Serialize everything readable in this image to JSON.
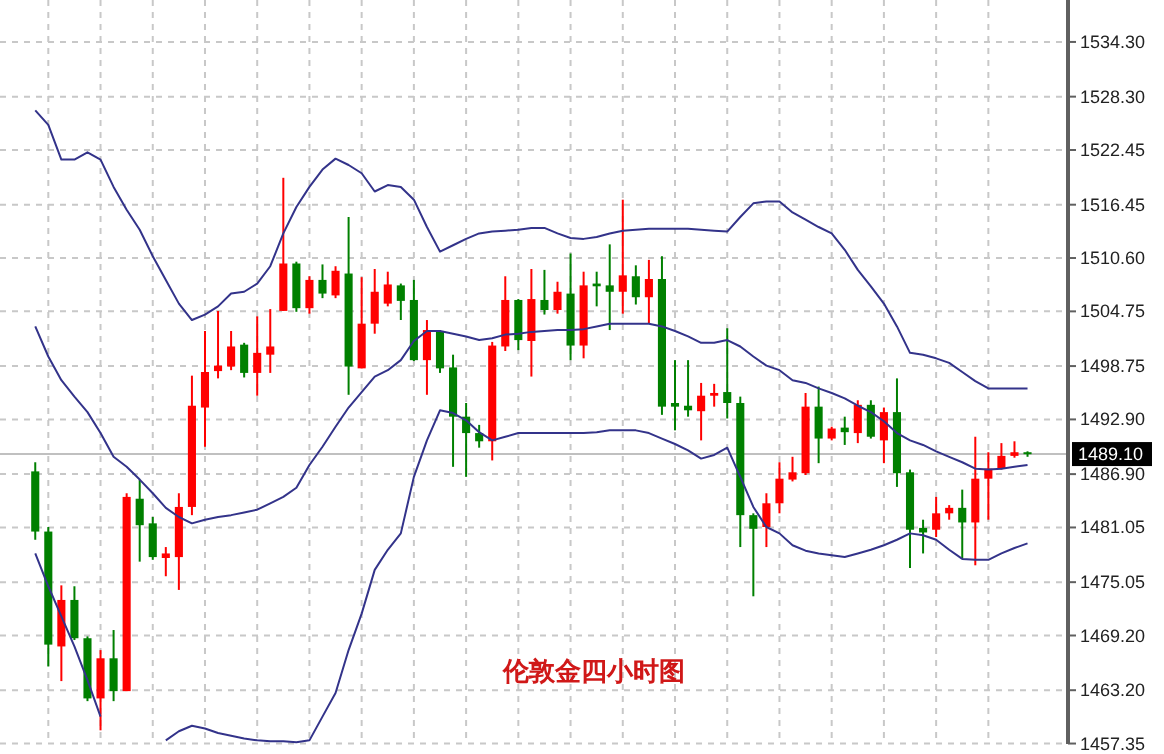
{
  "chart_data": {
    "type": "candlestick",
    "categories": [
      null,
      null,
      null,
      null,
      null,
      null,
      null,
      null,
      null,
      null,
      null,
      null,
      null,
      null,
      null,
      null,
      null,
      null,
      null,
      null,
      null,
      null,
      null,
      null,
      null,
      null,
      null,
      null,
      null,
      null,
      null,
      null,
      null,
      null,
      null,
      null,
      null,
      null,
      null,
      null,
      null,
      null,
      null,
      null,
      null,
      null,
      null,
      null,
      null,
      null,
      null,
      null,
      null,
      null,
      null,
      null,
      null,
      null,
      null,
      null,
      null,
      null,
      null,
      null,
      null,
      null,
      null,
      null,
      null,
      null,
      null,
      null,
      null,
      null,
      null,
      null,
      null
    ],
    "ohlc": [
      [
        1487.2,
        1488.2,
        1479.7,
        1480.6
      ],
      [
        1480.6,
        1481.1,
        1465.8,
        1468.2
      ],
      [
        1468.0,
        1474.7,
        1464.2,
        1473.1
      ],
      [
        1473.1,
        1474.6,
        1468.7,
        1468.9
      ],
      [
        1468.9,
        1469.1,
        1462.0,
        1462.3
      ],
      [
        1462.3,
        1467.6,
        1458.8,
        1466.7
      ],
      [
        1466.7,
        1469.8,
        1462.0,
        1463.1
      ],
      [
        1463.1,
        1484.8,
        1463.1,
        1484.4
      ],
      [
        1484.2,
        1486.3,
        1477.3,
        1481.3
      ],
      [
        1481.5,
        1482.2,
        1477.5,
        1477.8
      ],
      [
        1477.7,
        1478.9,
        1475.7,
        1478.2
      ],
      [
        1477.8,
        1484.8,
        1474.2,
        1483.3
      ],
      [
        1483.3,
        1497.7,
        1482.4,
        1494.4
      ],
      [
        1494.2,
        1502.6,
        1489.9,
        1498.1
      ],
      [
        1498.2,
        1504.8,
        1497.4,
        1498.8
      ],
      [
        1498.7,
        1502.6,
        1498.3,
        1500.9
      ],
      [
        1501.1,
        1501.3,
        1497.5,
        1498.0
      ],
      [
        1498.0,
        1504.2,
        1495.5,
        1500.2
      ],
      [
        1500.0,
        1505.0,
        1498.0,
        1500.9
      ],
      [
        1504.8,
        1519.4,
        1504.8,
        1510.0
      ],
      [
        1510.0,
        1510.2,
        1504.7,
        1505.1
      ],
      [
        1505.1,
        1508.6,
        1504.5,
        1508.2
      ],
      [
        1508.2,
        1509.9,
        1506.2,
        1506.7
      ],
      [
        1506.5,
        1509.7,
        1506.2,
        1509.2
      ],
      [
        1508.9,
        1515.1,
        1495.6,
        1498.7
      ],
      [
        1498.5,
        1508.5,
        1498.5,
        1503.4
      ],
      [
        1503.4,
        1509.4,
        1502.3,
        1506.9
      ],
      [
        1505.6,
        1509.1,
        1505.3,
        1507.7
      ],
      [
        1507.6,
        1507.8,
        1503.8,
        1505.9
      ],
      [
        1506.0,
        1508.2,
        1499.3,
        1499.4
      ],
      [
        1499.4,
        1503.8,
        1495.6,
        1502.7
      ],
      [
        1502.6,
        1502.7,
        1498.0,
        1498.5
      ],
      [
        1498.6,
        1500.0,
        1487.7,
        1493.2
      ],
      [
        1493.2,
        1494.7,
        1486.6,
        1491.4
      ],
      [
        1491.4,
        1492.3,
        1489.8,
        1490.5
      ],
      [
        1490.5,
        1501.4,
        1488.4,
        1501.0
      ],
      [
        1500.9,
        1508.6,
        1500.4,
        1506.0
      ],
      [
        1506.0,
        1506.1,
        1500.5,
        1501.6
      ],
      [
        1501.5,
        1509.4,
        1497.6,
        1506.1
      ],
      [
        1506.0,
        1509.3,
        1504.4,
        1504.9
      ],
      [
        1504.9,
        1508.0,
        1504.5,
        1506.9
      ],
      [
        1506.7,
        1511.1,
        1499.4,
        1501.0
      ],
      [
        1501.0,
        1509.1,
        1499.6,
        1507.6
      ],
      [
        1507.8,
        1509.1,
        1505.3,
        1507.5
      ],
      [
        1507.6,
        1512.1,
        1502.7,
        1506.9
      ],
      [
        1506.9,
        1517.0,
        1504.5,
        1508.7
      ],
      [
        1508.6,
        1509.8,
        1505.5,
        1506.3
      ],
      [
        1506.3,
        1510.4,
        1503.4,
        1508.3
      ],
      [
        1508.3,
        1510.8,
        1493.4,
        1494.3
      ],
      [
        1494.7,
        1499.4,
        1491.7,
        1494.3
      ],
      [
        1494.4,
        1499.4,
        1493.2,
        1493.9
      ],
      [
        1493.8,
        1496.9,
        1490.6,
        1495.5
      ],
      [
        1495.5,
        1496.8,
        1494.3,
        1495.8
      ],
      [
        1495.9,
        1502.9,
        1493.0,
        1494.7
      ],
      [
        1494.7,
        1495.4,
        1478.9,
        1482.4
      ],
      [
        1482.4,
        1482.6,
        1473.5,
        1480.9
      ],
      [
        1481.1,
        1484.8,
        1478.9,
        1483.7
      ],
      [
        1483.7,
        1488.2,
        1482.6,
        1486.4
      ],
      [
        1486.3,
        1488.8,
        1486.1,
        1487.1
      ],
      [
        1487.0,
        1495.8,
        1486.8,
        1494.3
      ],
      [
        1494.3,
        1496.5,
        1488.1,
        1490.8
      ],
      [
        1490.8,
        1492.1,
        1490.6,
        1491.9
      ],
      [
        1492.0,
        1493.2,
        1490.1,
        1491.5
      ],
      [
        1491.4,
        1495.0,
        1490.3,
        1494.5
      ],
      [
        1494.5,
        1495.0,
        1490.8,
        1491.0
      ],
      [
        1490.6,
        1494.2,
        1488.1,
        1493.7
      ],
      [
        1493.7,
        1497.4,
        1485.5,
        1487.0
      ],
      [
        1487.1,
        1487.4,
        1476.6,
        1480.8
      ],
      [
        1481.0,
        1481.9,
        1478.2,
        1480.5
      ],
      [
        1480.8,
        1484.4,
        1480.0,
        1482.6
      ],
      [
        1482.6,
        1483.5,
        1481.9,
        1483.2
      ],
      [
        1483.2,
        1485.2,
        1477.6,
        1481.6
      ],
      [
        1481.6,
        1491.0,
        1476.9,
        1486.4
      ],
      [
        1486.4,
        1489.3,
        1481.9,
        1487.5
      ],
      [
        1487.5,
        1490.3,
        1487.4,
        1488.9
      ],
      [
        1488.9,
        1490.5,
        1488.7,
        1489.3
      ],
      [
        1489.3,
        1489.4,
        1488.8,
        1489.1
      ]
    ],
    "colors": [
      "#008000",
      "#008000",
      "#ff0000",
      "#008000",
      "#008000",
      "#ff0000",
      "#008000",
      "#ff0000",
      "#008000",
      "#008000",
      "#ff0000",
      "#ff0000",
      "#ff0000",
      "#ff0000",
      "#ff0000",
      "#ff0000",
      "#008000",
      "#ff0000",
      "#ff0000",
      "#ff0000",
      "#008000",
      "#ff0000",
      "#008000",
      "#ff0000",
      "#008000",
      "#ff0000",
      "#ff0000",
      "#ff0000",
      "#008000",
      "#008000",
      "#ff0000",
      "#008000",
      "#008000",
      "#008000",
      "#008000",
      "#ff0000",
      "#ff0000",
      "#008000",
      "#ff0000",
      "#008000",
      "#ff0000",
      "#008000",
      "#ff0000",
      "#008000",
      "#008000",
      "#ff0000",
      "#008000",
      "#ff0000",
      "#008000",
      "#008000",
      "#008000",
      "#ff0000",
      "#ff0000",
      "#008000",
      "#008000",
      "#008000",
      "#ff0000",
      "#ff0000",
      "#ff0000",
      "#ff0000",
      "#008000",
      "#ff0000",
      "#008000",
      "#ff0000",
      "#008000",
      "#ff0000",
      "#008000",
      "#008000",
      "#008000",
      "#ff0000",
      "#ff0000",
      "#008000",
      "#ff0000",
      "#ff0000",
      "#ff0000",
      "#ff0000",
      "#008000"
    ],
    "series": [
      {
        "type": "line",
        "color": "#33338a",
        "values": [
          1526.8,
          1525.2,
          1521.4,
          1521.4,
          1522.2,
          1521.4,
          1518.4,
          1515.9,
          1513.7,
          1510.8,
          1508.2,
          1505.6,
          1503.8,
          1504.4,
          1505.3,
          1506.7,
          1506.9,
          1507.8,
          1509.7,
          1513.3,
          1516.2,
          1518.4,
          1520.3,
          1521.5,
          1520.8,
          1519.9,
          1517.9,
          1518.6,
          1518.4,
          1517.0,
          1514.0,
          1511.3,
          1512.0,
          1512.7,
          1513.3,
          1513.5,
          1513.6,
          1513.7,
          1513.9,
          1513.9,
          1513.3,
          1512.8,
          1512.7,
          1512.9,
          1513.3,
          1513.6,
          1513.7,
          1513.8,
          1513.8,
          1513.8,
          1513.8,
          1513.7,
          1513.6,
          1513.5,
          1515.1,
          1516.6,
          1516.8,
          1516.8,
          1515.6,
          1514.8,
          1514.0,
          1513.3,
          1511.5,
          1509.3,
          1507.5,
          1505.6,
          1503.1,
          1500.2,
          1500.0,
          1499.6,
          1499.1,
          1498.1,
          1497.1,
          1496.3,
          1496.3,
          1496.3,
          1496.3
        ]
      },
      {
        "type": "line",
        "color": "#33338a",
        "values": [
          1503.1,
          1499.8,
          1497.2,
          1495.4,
          1493.7,
          1491.4,
          1488.8,
          1487.7,
          1486.3,
          1484.8,
          1483.2,
          1482.2,
          1481.5,
          1481.9,
          1482.2,
          1482.4,
          1482.7,
          1483.0,
          1483.7,
          1484.4,
          1485.4,
          1487.9,
          1489.9,
          1492.1,
          1494.2,
          1495.9,
          1497.6,
          1498.3,
          1499.4,
          1501.5,
          1502.6,
          1502.6,
          1502.3,
          1502.0,
          1501.6,
          1501.8,
          1502.2,
          1502.3,
          1502.5,
          1502.6,
          1502.7,
          1502.7,
          1502.8,
          1503.1,
          1503.4,
          1503.4,
          1503.4,
          1503.4,
          1503.1,
          1502.6,
          1502.0,
          1501.3,
          1501.3,
          1501.6,
          1500.9,
          1499.8,
          1498.8,
          1498.3,
          1497.2,
          1496.9,
          1496.3,
          1495.8,
          1495.2,
          1494.4,
          1493.7,
          1492.7,
          1491.4,
          1490.6,
          1490.1,
          1489.4,
          1488.8,
          1488.2,
          1487.5,
          1487.4,
          1487.5,
          1487.7,
          1487.9
        ]
      },
      {
        "type": "line",
        "color": "#33338a",
        "values": [
          1478.2,
          1474.6,
          1471.3,
          1468.0,
          1464.3,
          1460.3,
          null,
          null,
          null,
          null,
          1457.7,
          1458.7,
          1459.3,
          1459.0,
          1458.5,
          1458.2,
          1457.9,
          1457.7,
          1457.6,
          1457.6,
          1457.5,
          1457.7,
          1460.3,
          1462.9,
          1467.6,
          1471.6,
          1476.4,
          1478.6,
          1480.4,
          1486.6,
          1490.6,
          1493.9,
          1493.6,
          1492.8,
          1491.5,
          1490.6,
          1491.0,
          1491.4,
          1491.4,
          1491.4,
          1491.4,
          1491.4,
          1491.4,
          1491.5,
          1491.7,
          1491.7,
          1491.7,
          1491.4,
          1490.8,
          1490.2,
          1489.5,
          1488.6,
          1489.0,
          1489.8,
          1486.6,
          1483.3,
          1481.1,
          1480.4,
          1479.1,
          1478.5,
          1478.2,
          1478.0,
          1477.8,
          1478.2,
          1478.6,
          1479.1,
          1479.7,
          1480.4,
          1480.2,
          1479.7,
          1478.6,
          1477.6,
          1477.5,
          1477.5,
          1478.2,
          1478.8,
          1479.3
        ]
      }
    ],
    "ylim": [
      1457.3,
      1538.9
    ],
    "yticks": [
      {
        "value": 1534.3,
        "label": "1534.30"
      },
      {
        "value": 1528.3,
        "label": "1528.30"
      },
      {
        "value": 1522.45,
        "label": "1522.45"
      },
      {
        "value": 1516.45,
        "label": "1516.45"
      },
      {
        "value": 1510.6,
        "label": "1510.60"
      },
      {
        "value": 1504.75,
        "label": "1504.75"
      },
      {
        "value": 1498.75,
        "label": "1498.75"
      },
      {
        "value": 1492.9,
        "label": "1492.90"
      },
      {
        "value": 1486.9,
        "label": "1486.90"
      },
      {
        "value": 1481.05,
        "label": "1481.05"
      },
      {
        "value": 1475.05,
        "label": "1475.05"
      },
      {
        "value": 1469.2,
        "label": "1469.20"
      },
      {
        "value": 1463.2,
        "label": "1463.20"
      },
      {
        "value": 1457.35,
        "label": "1457.35"
      }
    ],
    "ref_lines": [
      {
        "axis": "y",
        "value": 1489.1,
        "label": "1489.10",
        "color": "#c0c0c0"
      }
    ],
    "annotations": [
      "伦敦金四小时图"
    ],
    "grid": true,
    "tick_labels": "y"
  }
}
